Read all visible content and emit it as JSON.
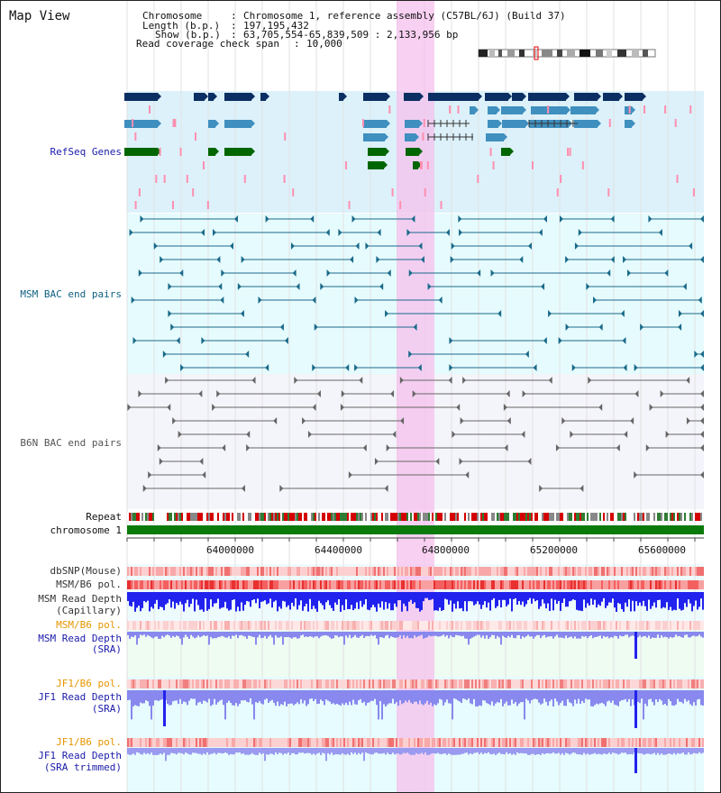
{
  "page_title": "Map View",
  "header": {
    "chromosome_label": "Chromosome",
    "chromosome_value": "Chromosome 1, reference assembly (C57BL/6J) (Build 37)",
    "length_label": "Length (b.p.)",
    "length_value": "197,195,432",
    "show_label": "Show (b.p.)",
    "show_value": "63,705,554-65,839,509 : 2,133,956 bp",
    "coverage_label": "Read coverage check span",
    "coverage_value": "10,000"
  },
  "tracks": {
    "refseq": "RefSeq Genes",
    "msm_bac": "MSM BAC end pairs",
    "b6n_bac": "B6N BAC end pairs",
    "repeat": "Repeat",
    "chromosome": "chromosome 1",
    "dbsnp": "dbSNP(Mouse)",
    "msm_b6_pol_1": "MSM/B6 pol.",
    "msm_read_depth_cap_1": "MSM Read Depth",
    "msm_read_depth_cap_2": "(Capillary)",
    "msm_b6_pol_2": "MSM/B6 pol.",
    "msm_read_depth_sra_1": "MSM Read Depth",
    "msm_read_depth_sra_2": "(SRA)",
    "jf1_b6_pol_1": "JF1/B6 pol.",
    "jf1_read_depth_sra_1": "JF1 Read Depth",
    "jf1_read_depth_sra_2": "(SRA)",
    "jf1_b6_pol_2": "JF1/B6 pol.",
    "jf1_read_depth_trim_1": "JF1 Read Depth",
    "jf1_read_depth_trim_2": "(SRA trimmed)"
  },
  "axis": {
    "ticks": [
      "64000000",
      "64400000",
      "64800000",
      "65200000",
      "65600000"
    ]
  },
  "colors": {
    "gene_dark": "#0b2e63",
    "gene_mid": "#3f8fbf",
    "gene_green": "#006600",
    "snp_pink": "#ff8fb0",
    "bac_msm": "#1a6a8a",
    "bac_b6n": "#666666",
    "highlight": "#f5c0ec",
    "depth_blue": "#2222ee",
    "depth_light": "#8888ee",
    "label_orange": "#e69500",
    "label_blue": "#1a1aaa",
    "label_teal": "#0f5f7f"
  }
}
